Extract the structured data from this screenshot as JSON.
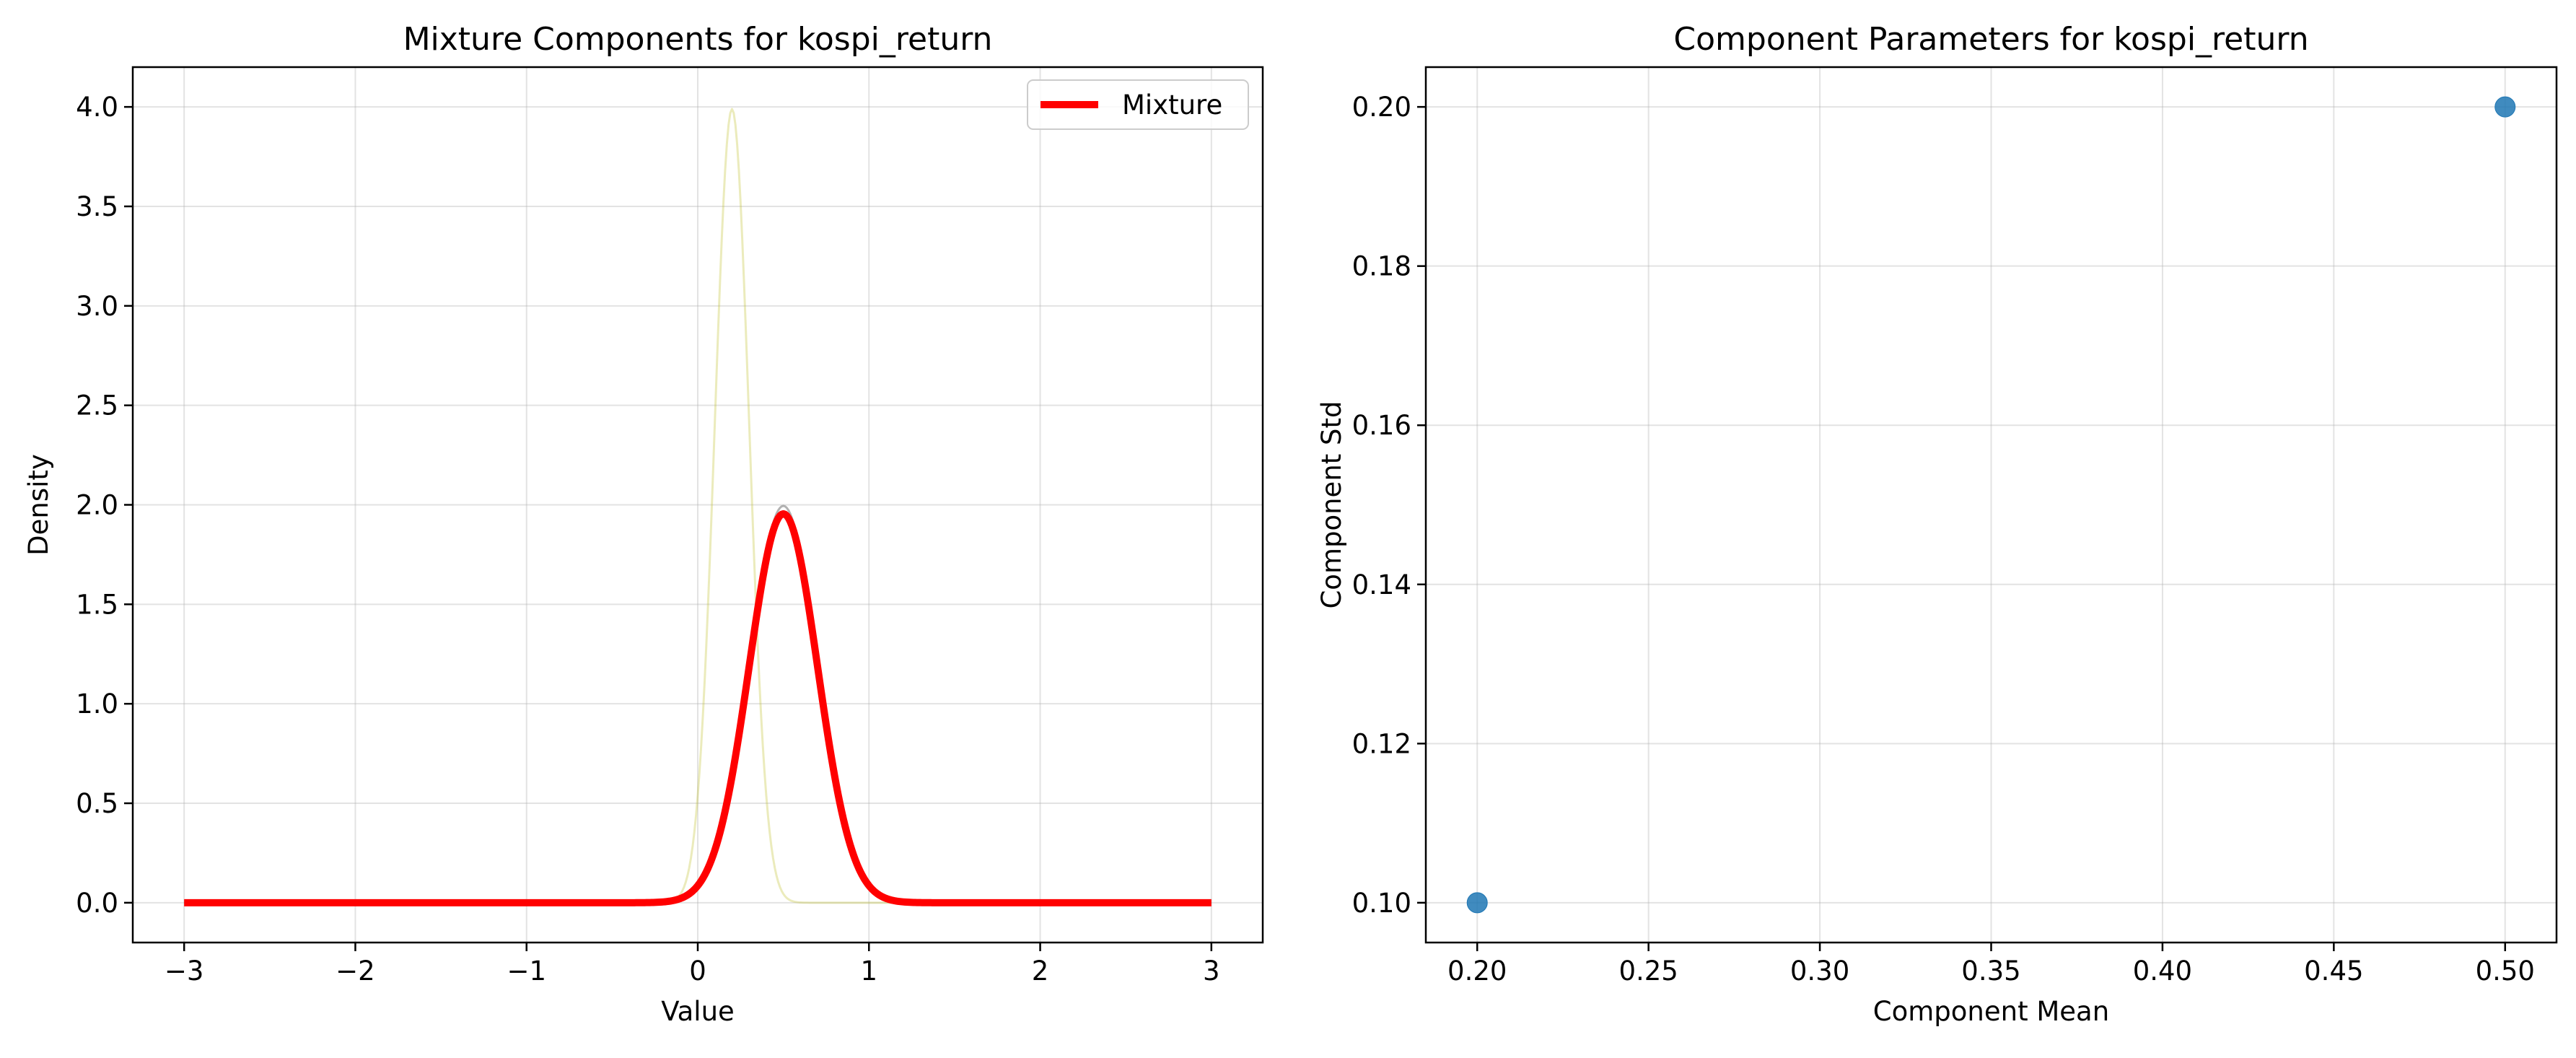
{
  "chart_data": [
    {
      "type": "line",
      "title": "Mixture Components for kospi_return",
      "xlabel": "Value",
      "ylabel": "Density",
      "xlim": [
        -3.3,
        3.3
      ],
      "ylim": [
        -0.2,
        4.2
      ],
      "xticks": [
        -3,
        -2,
        -1,
        0,
        1,
        2,
        3
      ],
      "xticklabels": [
        "−3",
        "−2",
        "−1",
        "0",
        "1",
        "2",
        "3"
      ],
      "yticks": [
        0.0,
        0.5,
        1.0,
        1.5,
        2.0,
        2.5,
        3.0,
        3.5,
        4.0
      ],
      "yticklabels": [
        "0.0",
        "0.5",
        "1.0",
        "1.5",
        "2.0",
        "2.5",
        "3.0",
        "3.5",
        "4.0"
      ],
      "grid": true,
      "legend": {
        "position": "top-right",
        "entries": [
          "Mixture"
        ]
      },
      "x_range": [
        -3,
        3
      ],
      "series": [
        {
          "role": "component",
          "mean": 0.2,
          "std": 0.1,
          "weight": 1.0,
          "color": "#bcbd22",
          "opacity": 0.3
        },
        {
          "role": "component",
          "mean": 0.5,
          "std": 0.2,
          "weight": 1.0,
          "color": "#7f7f7f",
          "opacity": 0.6
        },
        {
          "role": "mixture",
          "name": "Mixture",
          "mean": 0.5,
          "std": 0.2,
          "weight": 0.98,
          "color": "#ff0000"
        }
      ]
    },
    {
      "type": "scatter",
      "title": "Component Parameters for kospi_return",
      "xlabel": "Component Mean",
      "ylabel": "Component Std",
      "xlim": [
        0.185,
        0.515
      ],
      "ylim": [
        0.095,
        0.205
      ],
      "xticks": [
        0.2,
        0.25,
        0.3,
        0.35,
        0.4,
        0.45,
        0.5
      ],
      "xticklabels": [
        "0.20",
        "0.25",
        "0.30",
        "0.35",
        "0.40",
        "0.45",
        "0.50"
      ],
      "yticks": [
        0.1,
        0.12,
        0.14,
        0.16,
        0.18,
        0.2
      ],
      "yticklabels": [
        "0.10",
        "0.12",
        "0.14",
        "0.16",
        "0.18",
        "0.20"
      ],
      "grid": true,
      "points": [
        {
          "x": 0.2,
          "y": 0.1
        },
        {
          "x": 0.5,
          "y": 0.2
        }
      ],
      "color": "#1f77b4"
    }
  ]
}
